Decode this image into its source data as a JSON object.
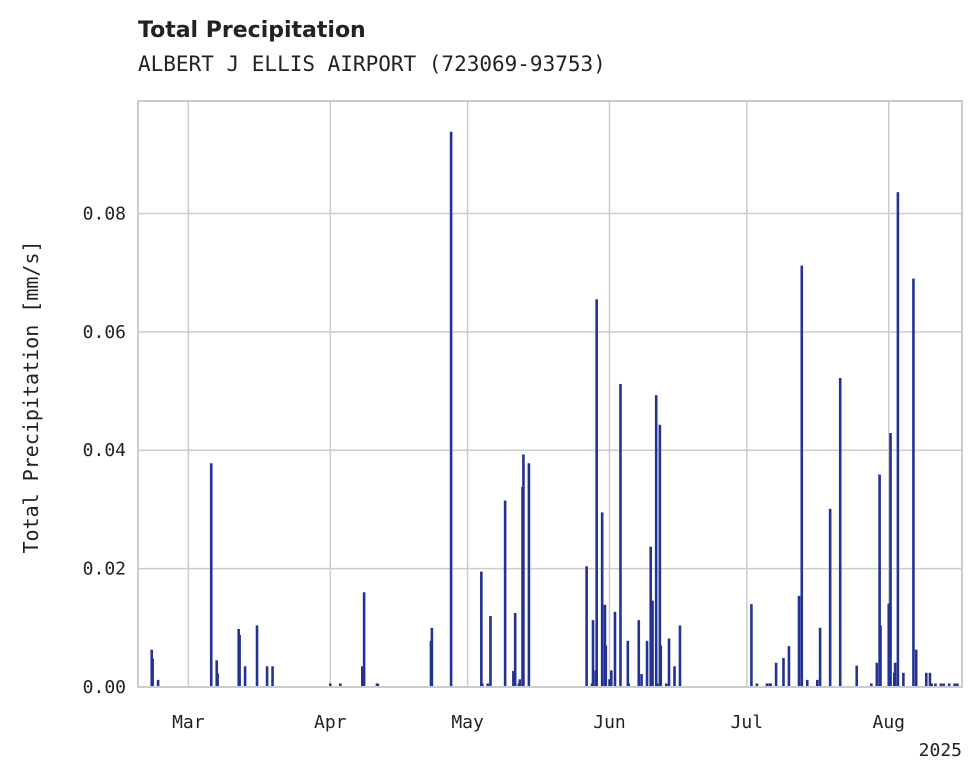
{
  "chart_data": {
    "type": "bar",
    "title": "Total Precipitation",
    "subtitle": "ALBERT J ELLIS AIRPORT (723069-93753)",
    "xlabel": "",
    "ylabel": "Total Precipitation [mm/s]",
    "year_label": "2025",
    "x_ticks": [
      {
        "label": "Mar",
        "date": "2025-03-01"
      },
      {
        "label": "Apr",
        "date": "2025-04-01"
      },
      {
        "label": "May",
        "date": "2025-05-01"
      },
      {
        "label": "Jun",
        "date": "2025-06-01"
      },
      {
        "label": "Jul",
        "date": "2025-07-01"
      },
      {
        "label": "Aug",
        "date": "2025-08-01"
      }
    ],
    "y_ticks": [
      "0.00",
      "0.02",
      "0.04",
      "0.06",
      "0.08"
    ],
    "xlim": [
      "2025-02-18",
      "2025-08-17"
    ],
    "ylim": [
      0,
      0.099
    ],
    "grid": true,
    "bar_color": "#233293",
    "series": [
      {
        "x": [
          "2025-02-21",
          "2025-02-21",
          "2025-02-22",
          "2025-03-06",
          "2025-03-07",
          "2025-03-07",
          "2025-03-12",
          "2025-03-12",
          "2025-03-13",
          "2025-03-16",
          "2025-03-18",
          "2025-03-19",
          "2025-04-01",
          "2025-04-03",
          "2025-04-08",
          "2025-04-08",
          "2025-04-11",
          "2025-04-11",
          "2025-04-23",
          "2025-04-23",
          "2025-04-27",
          "2025-05-04",
          "2025-05-04",
          "2025-05-05",
          "2025-05-06",
          "2025-05-09",
          "2025-05-11",
          "2025-05-11",
          "2025-05-12",
          "2025-05-12",
          "2025-05-13",
          "2025-05-13",
          "2025-05-14",
          "2025-05-27",
          "2025-05-28",
          "2025-05-28",
          "2025-05-29",
          "2025-05-29",
          "2025-05-30",
          "2025-05-31",
          "2025-05-31",
          "2025-06-01",
          "2025-06-01",
          "2025-06-02",
          "2025-06-03",
          "2025-06-05",
          "2025-06-05",
          "2025-06-07",
          "2025-06-08",
          "2025-06-09",
          "2025-06-10",
          "2025-06-10",
          "2025-06-11",
          "2025-06-11",
          "2025-06-12",
          "2025-06-12",
          "2025-06-13",
          "2025-06-14",
          "2025-06-15",
          "2025-06-16",
          "2025-07-02",
          "2025-07-03",
          "2025-07-05",
          "2025-07-06",
          "2025-07-06",
          "2025-07-07",
          "2025-07-09",
          "2025-07-10",
          "2025-07-12",
          "2025-07-13",
          "2025-07-14",
          "2025-07-16",
          "2025-07-17",
          "2025-07-19",
          "2025-07-21",
          "2025-07-25",
          "2025-07-28",
          "2025-07-29",
          "2025-07-30",
          "2025-07-30",
          "2025-08-01",
          "2025-08-01",
          "2025-08-02",
          "2025-08-02",
          "2025-08-03",
          "2025-08-04",
          "2025-08-06",
          "2025-08-07",
          "2025-08-09",
          "2025-08-10",
          "2025-08-10",
          "2025-08-11",
          "2025-08-12",
          "2025-08-13",
          "2025-08-14",
          "2025-08-15",
          "2025-08-16"
        ],
        "values": [
          0.0063,
          0.0048,
          0.0012,
          0.0378,
          0.0045,
          0.0023,
          0.0098,
          0.0088,
          0.0035,
          0.0104,
          0.0035,
          0.0035,
          0.0006,
          0.0006,
          0.016,
          0.0035,
          0.0006,
          0.0006,
          0.0078,
          0.01,
          0.0938,
          0.0195,
          0.0006,
          0.0006,
          0.012,
          0.0315,
          0.0125,
          0.0027,
          0.0006,
          0.0013,
          0.0338,
          0.0393,
          0.0378,
          0.0204,
          0.0006,
          0.0113,
          0.0028,
          0.0655,
          0.0295,
          0.0139,
          0.007,
          0.0028,
          0.0013,
          0.0127,
          0.0512,
          0.0078,
          0.0006,
          0.0113,
          0.0022,
          0.0078,
          0.0146,
          0.0237,
          0.0493,
          0.0006,
          0.0443,
          0.007,
          0.0006,
          0.0082,
          0.0035,
          0.0104,
          0.014,
          0.0006,
          0.0006,
          0.0006,
          0.0006,
          0.0041,
          0.0049,
          0.0069,
          0.0154,
          0.0712,
          0.0012,
          0.0012,
          0.01,
          0.0301,
          0.0522,
          0.0036,
          0.0006,
          0.0041,
          0.0359,
          0.0104,
          0.0429,
          0.0141,
          0.0024,
          0.0041,
          0.0836,
          0.0024,
          0.069,
          0.0063,
          0.0024,
          0.0006,
          0.0024,
          0.0006,
          0.0006,
          0.0006,
          0.0006,
          0.0006,
          0.0006
        ]
      }
    ]
  }
}
